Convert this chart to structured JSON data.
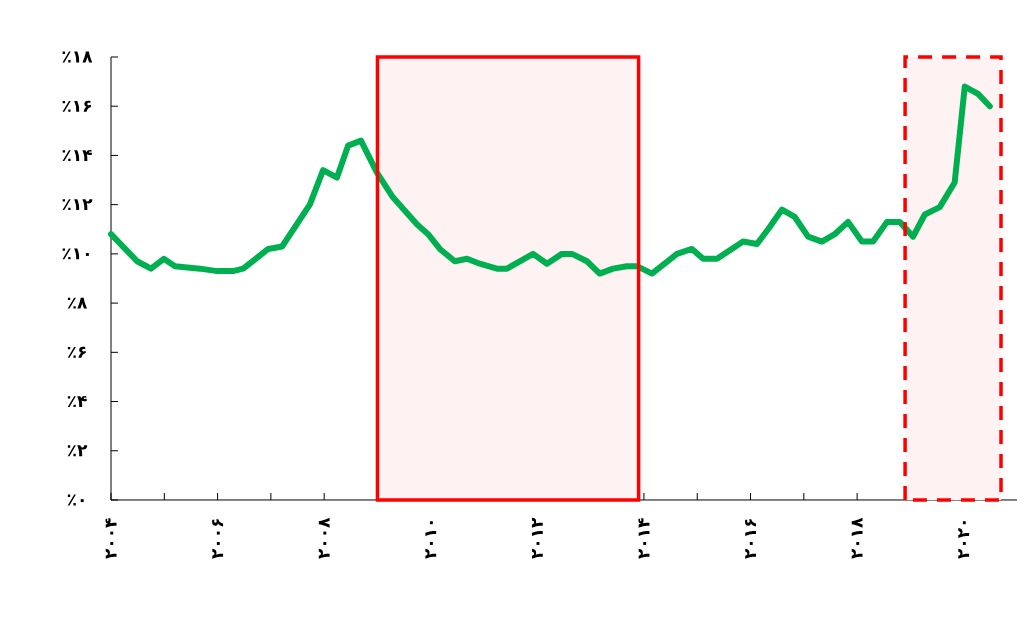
{
  "chart_data": {
    "type": "line",
    "x": [
      2004.0,
      2004.49,
      2004.75,
      2004.99,
      2005.2,
      2005.67,
      2005.99,
      2006.29,
      2006.48,
      2006.95,
      2007.21,
      2007.73,
      2007.98,
      2008.24,
      2008.45,
      2008.69,
      2008.99,
      2009.29,
      2009.74,
      2009.95,
      2010.17,
      2010.45,
      2010.68,
      2010.92,
      2011.24,
      2011.43,
      2011.92,
      2012.18,
      2012.46,
      2012.65,
      2012.93,
      2013.17,
      2013.42,
      2013.68,
      2013.87,
      2014.15,
      2014.62,
      2014.9,
      2015.11,
      2015.37,
      2015.86,
      2016.12,
      2016.33,
      2016.59,
      2016.83,
      2017.08,
      2017.34,
      2017.58,
      2017.83,
      2018.09,
      2018.3,
      2018.56,
      2018.8,
      2019.05,
      2019.27,
      2019.55,
      2019.83,
      2020.02,
      2020.27,
      2020.49
    ],
    "series": [
      {
        "color": "#00b050",
        "values": [
          10.8,
          9.7,
          9.4,
          9.8,
          9.5,
          9.4,
          9.3,
          9.3,
          9.4,
          10.2,
          10.3,
          12.0,
          13.4,
          13.1,
          14.4,
          14.6,
          13.3,
          12.3,
          11.2,
          10.8,
          10.2,
          9.7,
          9.8,
          9.6,
          9.4,
          9.4,
          10.0,
          9.6,
          10.0,
          10.0,
          9.7,
          9.2,
          9.4,
          9.5,
          9.5,
          9.2,
          10.0,
          10.2,
          9.8,
          9.8,
          10.5,
          10.4,
          11.0,
          11.8,
          11.5,
          10.7,
          10.5,
          10.8,
          11.3,
          10.5,
          10.5,
          11.3,
          11.3,
          10.7,
          11.6,
          11.9,
          12.9,
          16.8,
          16.5,
          16.0
        ]
      }
    ],
    "xlim": [
      2004,
      2021
    ],
    "xticks": [
      {
        "value": 2004,
        "label": "۲۰۰۴"
      },
      {
        "value": 2005,
        "label": null
      },
      {
        "value": 2006,
        "label": "۲۰۰۶"
      },
      {
        "value": 2007,
        "label": null
      },
      {
        "value": 2008,
        "label": "۲۰۰۸"
      },
      {
        "value": 2009,
        "label": null
      },
      {
        "value": 2010,
        "label": "۲۰۱۰"
      },
      {
        "value": 2011,
        "label": null
      },
      {
        "value": 2012,
        "label": "۲۰۱۲"
      },
      {
        "value": 2013,
        "label": null
      },
      {
        "value": 2014,
        "label": "۲۰۱۴"
      },
      {
        "value": 2015,
        "label": null
      },
      {
        "value": 2016,
        "label": "۲۰۱۶"
      },
      {
        "value": 2017,
        "label": null
      },
      {
        "value": 2018,
        "label": "۲۰۱۸"
      },
      {
        "value": 2019,
        "label": null
      },
      {
        "value": 2020,
        "label": "۲۰۲۰"
      }
    ],
    "ylim": [
      0,
      18
    ],
    "yticks": [
      {
        "value": 0,
        "label": "٪۰"
      },
      {
        "value": 2,
        "label": "٪۲"
      },
      {
        "value": 4,
        "label": "٪۴"
      },
      {
        "value": 6,
        "label": "٪۶"
      },
      {
        "value": 8,
        "label": "٪۸"
      },
      {
        "value": 10,
        "label": "٪۱۰"
      },
      {
        "value": 12,
        "label": "٪۱۲"
      },
      {
        "value": 14,
        "label": "٪۱۴"
      },
      {
        "value": 16,
        "label": "٪۱۶"
      },
      {
        "value": 18,
        "label": "٪۱۸"
      }
    ],
    "bands": [
      {
        "axis": "x",
        "from": 2009.0,
        "to": 2013.9,
        "color": "#fff2f2"
      },
      {
        "axis": "x",
        "from": 2018.9,
        "to": 2020.7,
        "color": "#fff2f2"
      }
    ],
    "marker": "none",
    "line_style": "solid"
  }
}
